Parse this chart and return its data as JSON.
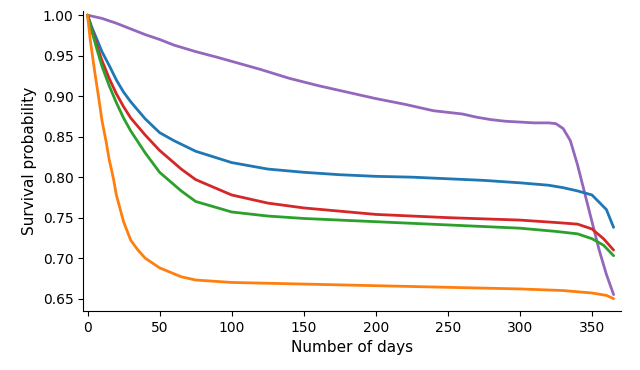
{
  "title": "",
  "xlabel": "Number of days",
  "ylabel": "Survival probability",
  "xlim": [
    -3,
    370
  ],
  "ylim": [
    0.635,
    1.005
  ],
  "yticks": [
    0.65,
    0.7,
    0.75,
    0.8,
    0.85,
    0.9,
    0.95,
    1.0
  ],
  "xticks": [
    0,
    50,
    100,
    150,
    200,
    250,
    300,
    350
  ],
  "curves": {
    "purple": {
      "color": "#9467bd",
      "x": [
        0,
        5,
        10,
        15,
        20,
        30,
        40,
        50,
        60,
        75,
        90,
        100,
        120,
        140,
        160,
        180,
        200,
        220,
        240,
        260,
        270,
        280,
        290,
        300,
        310,
        320,
        325,
        330,
        335,
        340,
        345,
        350,
        355,
        360,
        365
      ],
      "y": [
        1.0,
        0.998,
        0.996,
        0.993,
        0.99,
        0.983,
        0.976,
        0.97,
        0.963,
        0.955,
        0.948,
        0.943,
        0.933,
        0.922,
        0.913,
        0.905,
        0.897,
        0.89,
        0.882,
        0.878,
        0.874,
        0.871,
        0.869,
        0.868,
        0.867,
        0.867,
        0.866,
        0.86,
        0.845,
        0.815,
        0.78,
        0.745,
        0.71,
        0.68,
        0.655
      ]
    },
    "blue": {
      "color": "#1f77b4",
      "x": [
        0,
        3,
        7,
        10,
        15,
        20,
        25,
        30,
        40,
        50,
        60,
        75,
        100,
        125,
        150,
        175,
        200,
        225,
        250,
        275,
        300,
        320,
        330,
        340,
        350,
        360,
        365
      ],
      "y": [
        1.0,
        0.985,
        0.968,
        0.955,
        0.938,
        0.92,
        0.905,
        0.893,
        0.872,
        0.855,
        0.845,
        0.832,
        0.818,
        0.81,
        0.806,
        0.803,
        0.801,
        0.8,
        0.798,
        0.796,
        0.793,
        0.79,
        0.787,
        0.783,
        0.778,
        0.76,
        0.738
      ]
    },
    "red": {
      "color": "#d62728",
      "x": [
        0,
        3,
        7,
        10,
        15,
        20,
        25,
        30,
        40,
        50,
        65,
        75,
        100,
        125,
        150,
        200,
        250,
        300,
        325,
        340,
        350,
        358,
        365
      ],
      "y": [
        1.0,
        0.982,
        0.96,
        0.944,
        0.922,
        0.903,
        0.887,
        0.873,
        0.852,
        0.833,
        0.81,
        0.797,
        0.778,
        0.768,
        0.762,
        0.754,
        0.75,
        0.747,
        0.744,
        0.742,
        0.736,
        0.724,
        0.71
      ]
    },
    "green": {
      "color": "#2ca02c",
      "x": [
        0,
        3,
        7,
        10,
        15,
        20,
        25,
        30,
        40,
        50,
        65,
        75,
        100,
        125,
        150,
        200,
        250,
        300,
        325,
        340,
        350,
        358,
        365
      ],
      "y": [
        1.0,
        0.98,
        0.955,
        0.937,
        0.913,
        0.892,
        0.873,
        0.857,
        0.83,
        0.806,
        0.783,
        0.77,
        0.757,
        0.752,
        0.749,
        0.745,
        0.741,
        0.737,
        0.733,
        0.73,
        0.724,
        0.716,
        0.703
      ]
    },
    "orange": {
      "color": "#ff7f0e",
      "x": [
        0,
        2,
        5,
        8,
        10,
        13,
        15,
        18,
        20,
        25,
        30,
        35,
        40,
        50,
        65,
        75,
        100,
        150,
        200,
        250,
        300,
        330,
        350,
        360,
        365
      ],
      "y": [
        1.0,
        0.968,
        0.93,
        0.895,
        0.87,
        0.843,
        0.822,
        0.798,
        0.778,
        0.745,
        0.722,
        0.71,
        0.7,
        0.688,
        0.677,
        0.673,
        0.67,
        0.668,
        0.666,
        0.664,
        0.662,
        0.66,
        0.657,
        0.654,
        0.65
      ]
    }
  },
  "linewidth": 2.0,
  "background_color": "#ffffff",
  "label_fontsize": 11,
  "tick_fontsize": 10
}
